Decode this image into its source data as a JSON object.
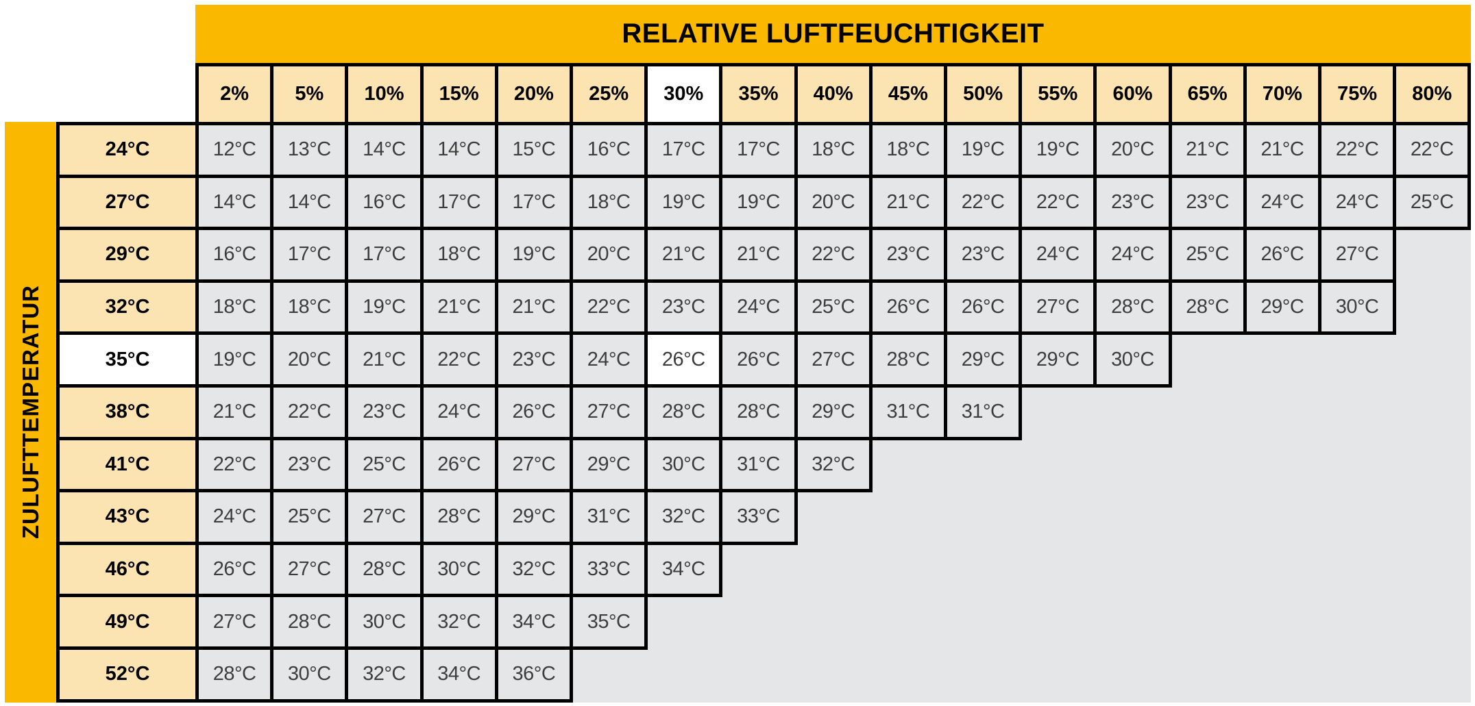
{
  "table": {
    "column_axis_title": "RELATIVE LUFTFEUCHTIGKEIT",
    "row_axis_title": "ZULUFTTEMPERATUR",
    "column_headers": [
      "2%",
      "5%",
      "10%",
      "15%",
      "20%",
      "25%",
      "30%",
      "35%",
      "40%",
      "45%",
      "50%",
      "55%",
      "60%",
      "65%",
      "70%",
      "75%",
      "80%"
    ],
    "rows": [
      {
        "label": "24°C",
        "values": [
          "12°C",
          "13°C",
          "14°C",
          "14°C",
          "15°C",
          "16°C",
          "17°C",
          "17°C",
          "18°C",
          "18°C",
          "19°C",
          "19°C",
          "20°C",
          "21°C",
          "21°C",
          "22°C",
          "22°C"
        ]
      },
      {
        "label": "27°C",
        "values": [
          "14°C",
          "14°C",
          "16°C",
          "17°C",
          "17°C",
          "18°C",
          "19°C",
          "19°C",
          "20°C",
          "21°C",
          "22°C",
          "22°C",
          "23°C",
          "23°C",
          "24°C",
          "24°C",
          "25°C"
        ]
      },
      {
        "label": "29°C",
        "values": [
          "16°C",
          "17°C",
          "17°C",
          "18°C",
          "19°C",
          "20°C",
          "21°C",
          "21°C",
          "22°C",
          "23°C",
          "23°C",
          "24°C",
          "24°C",
          "25°C",
          "26°C",
          "27°C"
        ]
      },
      {
        "label": "32°C",
        "values": [
          "18°C",
          "18°C",
          "19°C",
          "21°C",
          "21°C",
          "22°C",
          "23°C",
          "24°C",
          "25°C",
          "26°C",
          "26°C",
          "27°C",
          "28°C",
          "28°C",
          "29°C",
          "30°C"
        ]
      },
      {
        "label": "35°C",
        "values": [
          "19°C",
          "20°C",
          "21°C",
          "22°C",
          "23°C",
          "24°C",
          "26°C",
          "26°C",
          "27°C",
          "28°C",
          "29°C",
          "29°C",
          "30°C"
        ]
      },
      {
        "label": "38°C",
        "values": [
          "21°C",
          "22°C",
          "23°C",
          "24°C",
          "26°C",
          "27°C",
          "28°C",
          "28°C",
          "29°C",
          "31°C",
          "31°C"
        ]
      },
      {
        "label": "41°C",
        "values": [
          "22°C",
          "23°C",
          "25°C",
          "26°C",
          "27°C",
          "29°C",
          "30°C",
          "31°C",
          "32°C"
        ]
      },
      {
        "label": "43°C",
        "values": [
          "24°C",
          "25°C",
          "27°C",
          "28°C",
          "29°C",
          "31°C",
          "32°C",
          "33°C"
        ]
      },
      {
        "label": "46°C",
        "values": [
          "26°C",
          "27°C",
          "28°C",
          "30°C",
          "32°C",
          "33°C",
          "34°C"
        ]
      },
      {
        "label": "49°C",
        "values": [
          "27°C",
          "28°C",
          "30°C",
          "32°C",
          "34°C",
          "35°C"
        ]
      },
      {
        "label": "52°C",
        "values": [
          "28°C",
          "30°C",
          "32°C",
          "34°C",
          "36°C"
        ]
      }
    ],
    "highlight": {
      "column_header": "30%",
      "row_header": "35°C",
      "cell_value": "26°C",
      "row_index": 4,
      "col_index": 6
    }
  },
  "colors": {
    "band_orange": "#FBB800",
    "header_peach": "#FCE3B2",
    "cell_gray": "#E5E6E7",
    "highlight_white": "#FFFFFF",
    "border_black": "#000000"
  },
  "chart_data": {
    "type": "table",
    "title": "RELATIVE LUFTFEUCHTIGKEIT",
    "x_axis_label": "RELATIVE LUFTFEUCHTIGKEIT",
    "y_axis_label": "ZULUFTTEMPERATUR",
    "cell_unit": "°C",
    "columns_percent": [
      2,
      5,
      10,
      15,
      20,
      25,
      30,
      35,
      40,
      45,
      50,
      55,
      60,
      65,
      70,
      75,
      80
    ],
    "rows_celsius": [
      24,
      27,
      29,
      32,
      35,
      38,
      41,
      43,
      46,
      49,
      52
    ],
    "matrix": [
      [
        12,
        13,
        14,
        14,
        15,
        16,
        17,
        17,
        18,
        18,
        19,
        19,
        20,
        21,
        21,
        22,
        22
      ],
      [
        14,
        14,
        16,
        17,
        17,
        18,
        19,
        19,
        20,
        21,
        22,
        22,
        23,
        23,
        24,
        24,
        25
      ],
      [
        16,
        17,
        17,
        18,
        19,
        20,
        21,
        21,
        22,
        23,
        23,
        24,
        24,
        25,
        26,
        27
      ],
      [
        18,
        18,
        19,
        21,
        21,
        22,
        23,
        24,
        25,
        26,
        26,
        27,
        28,
        28,
        29,
        30
      ],
      [
        19,
        20,
        21,
        22,
        23,
        24,
        26,
        26,
        27,
        28,
        29,
        29,
        30
      ],
      [
        21,
        22,
        23,
        24,
        26,
        27,
        28,
        28,
        29,
        31,
        31
      ],
      [
        22,
        23,
        25,
        26,
        27,
        29,
        30,
        31,
        32
      ],
      [
        24,
        25,
        27,
        28,
        29,
        31,
        32,
        33
      ],
      [
        26,
        27,
        28,
        30,
        32,
        33,
        34
      ],
      [
        27,
        28,
        30,
        32,
        34,
        35
      ],
      [
        28,
        30,
        32,
        34,
        36
      ]
    ],
    "highlighted_cell": {
      "row_celsius": 35,
      "column_percent": 30,
      "value_celsius": 26
    }
  }
}
